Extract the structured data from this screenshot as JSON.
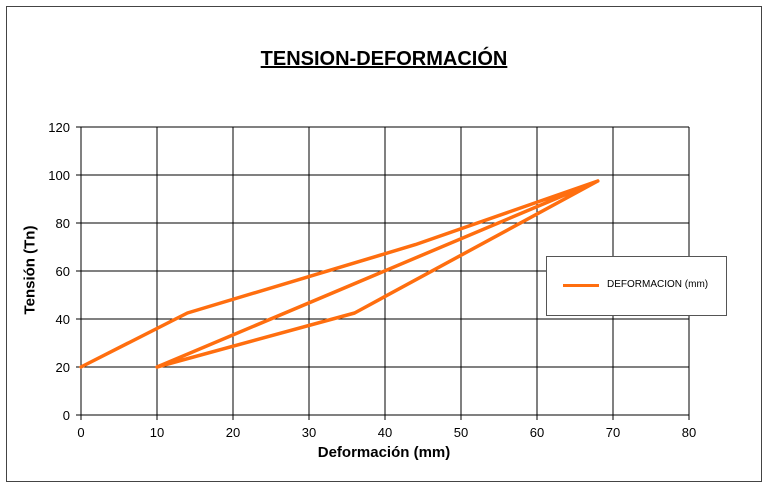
{
  "chart_data": {
    "type": "line",
    "title": "TENSION-DEFORMACIÓN",
    "xlabel": "Deformación (mm)",
    "ylabel": "Tensión (Tn)",
    "xlim": [
      0,
      80
    ],
    "ylim": [
      0,
      120
    ],
    "xticks": [
      "0",
      "10",
      "20",
      "30",
      "40",
      "50",
      "60",
      "70",
      "80"
    ],
    "yticks": [
      "0",
      "20",
      "40",
      "60",
      "80",
      "100",
      "120"
    ],
    "grid": true,
    "legend_position": "right",
    "series": [
      {
        "name": "DEFORMACION (mm)",
        "color": "#ff6e0f",
        "x": [
          0,
          14,
          44,
          68,
          36,
          10,
          68,
          10
        ],
        "y": [
          20,
          42.5,
          71,
          97.5,
          42.5,
          20,
          97.5,
          20
        ]
      }
    ]
  }
}
